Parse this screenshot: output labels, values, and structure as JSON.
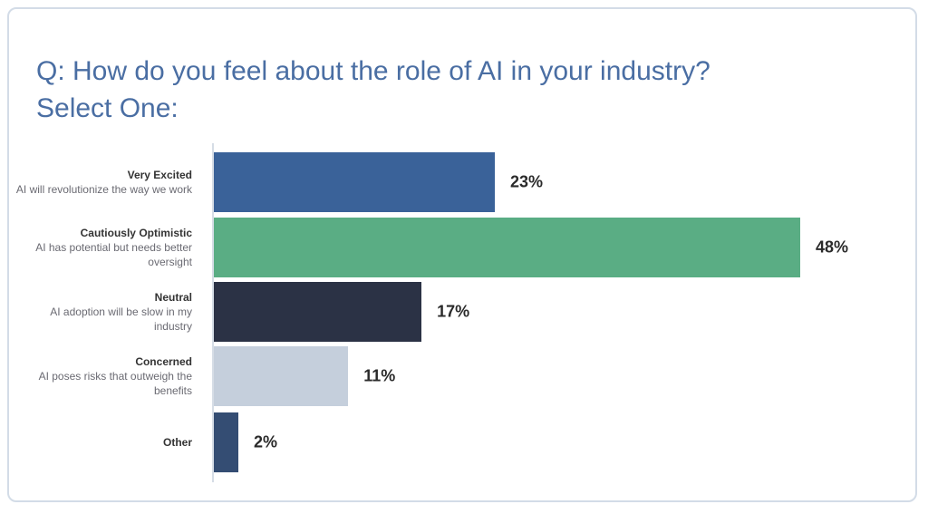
{
  "title_line1": "Q: How do you feel about the role of AI in your industry?",
  "title_line2": "Select One:",
  "chart_data": {
    "type": "bar",
    "orientation": "horizontal",
    "title": "Q: How do you feel about the role of AI in your industry? Select One:",
    "categories": [
      "Very Excited",
      "Cautiously Optimistic",
      "Neutral",
      "Concerned",
      "Other"
    ],
    "descriptions": [
      "AI will revolutionize the way we work",
      "AI has potential but needs better oversight",
      "AI adoption will be slow in my industry",
      "AI poses risks that outweigh the benefits",
      ""
    ],
    "values": [
      23,
      48,
      17,
      11,
      2
    ],
    "labels": [
      "23%",
      "48%",
      "17%",
      "11%",
      "2%"
    ],
    "colors": [
      "#3a6299",
      "#5aad84",
      "#2b3245",
      "#c5cfdc",
      "#344d73"
    ],
    "unit": "%",
    "xlim": [
      0,
      50
    ],
    "grid": false
  }
}
